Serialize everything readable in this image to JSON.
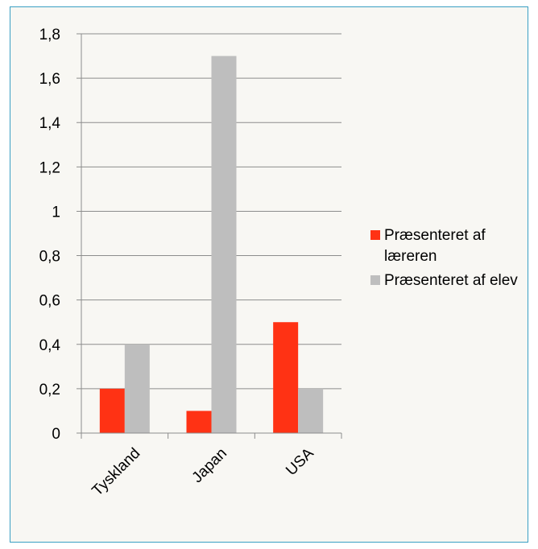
{
  "chart_data": {
    "type": "bar",
    "categories": [
      "Tyskland",
      "Japan",
      "USA"
    ],
    "series": [
      {
        "name": "Præsenteret af læreren",
        "color": "#ff3214",
        "values": [
          0.2,
          0.1,
          0.5
        ]
      },
      {
        "name": "Præsenteret af elev",
        "color": "#bebebe",
        "values": [
          0.4,
          1.7,
          0.2
        ]
      }
    ],
    "ylim": [
      0,
      1.8
    ],
    "yticks": [
      "0",
      "0,2",
      "0,4",
      "0,6",
      "0,8",
      "1",
      "1,2",
      "1,4",
      "1,6",
      "1,8"
    ],
    "title": "",
    "xlabel": "",
    "ylabel": "",
    "grid": true,
    "legend_position": "right"
  }
}
